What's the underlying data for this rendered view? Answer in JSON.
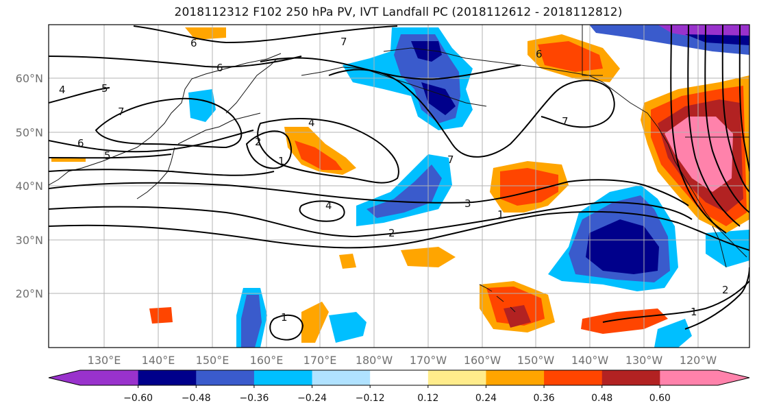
{
  "title": "2018112312 F102 250 hPa PV, IVT Landfall PC (2018112612 - 2018112812)",
  "map": {
    "projection": "PlateCarree",
    "lon_range_east": [
      120,
      245
    ],
    "lat_range": [
      10,
      70
    ],
    "lat_labels": [
      "20°N",
      "30°N",
      "40°N",
      "50°N",
      "60°N"
    ],
    "lon_labels": [
      "130°E",
      "140°E",
      "150°E",
      "160°E",
      "170°E",
      "180°W",
      "170°W",
      "160°W",
      "150°W",
      "140°W",
      "130°W",
      "120°W"
    ],
    "gridlines": true
  },
  "colorbar": {
    "ticks": [
      "−0.60",
      "−0.48",
      "−0.36",
      "−0.24",
      "−0.12",
      "0.12",
      "0.24",
      "0.36",
      "0.48",
      "0.60"
    ],
    "colors": [
      "#9932CC",
      "#00008B",
      "#3A5BCC",
      "#00BFFF",
      "#B0E2FF",
      "#FFFFFF",
      "#FFEC8B",
      "#FFA500",
      "#FF4500",
      "#B22222",
      "#FF82AB"
    ],
    "extend": "both"
  },
  "contour_labels": [
    "6",
    "7",
    "6",
    "5",
    "4",
    "7",
    "6",
    "5",
    "4",
    "2",
    "1",
    "4",
    "7",
    "3",
    "2",
    "1",
    "7",
    "6",
    "1",
    "2",
    "1"
  ]
}
